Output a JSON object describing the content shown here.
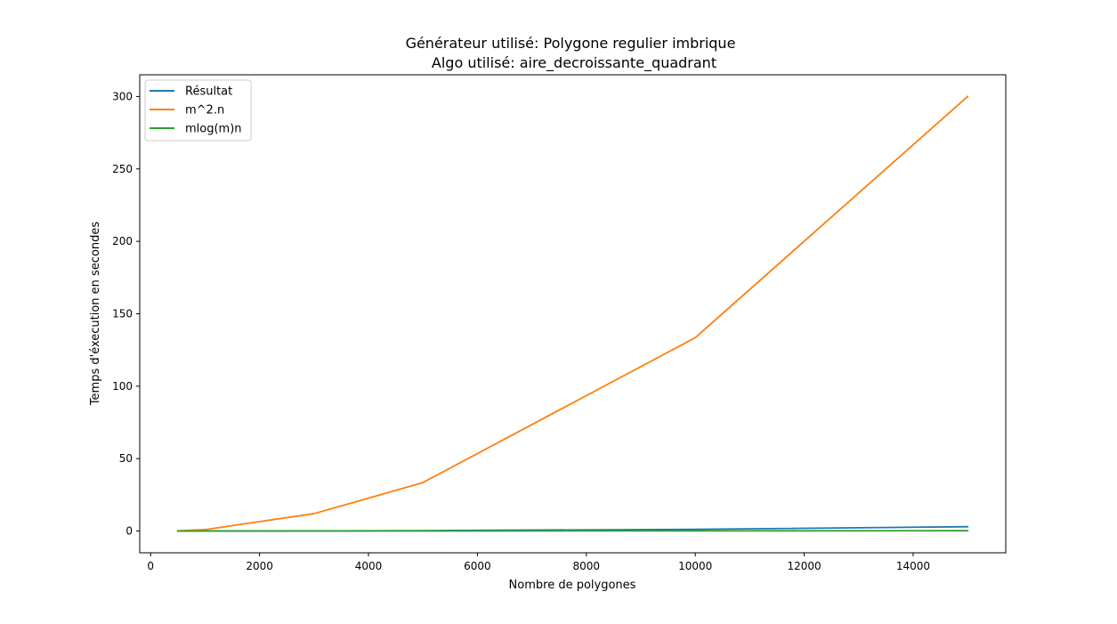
{
  "chart_data": {
    "type": "line",
    "title": "Générateur utilisé: Polygone regulier imbrique",
    "subtitle": "Algo utilisé: aire_decroissante_quadrant",
    "xlabel": "Nombre de polygones",
    "ylabel": "Temps d'éxecution en secondes",
    "xlim": [
      -200,
      15700
    ],
    "ylim": [
      -15,
      315
    ],
    "xticks": [
      0,
      2000,
      4000,
      6000,
      8000,
      10000,
      12000,
      14000
    ],
    "yticks": [
      0,
      50,
      100,
      150,
      200,
      250,
      300
    ],
    "grid": false,
    "legend_position": "top-left",
    "series": [
      {
        "name": "Résultat",
        "color": "#1f77b4",
        "x": [
          500,
          1000,
          3000,
          5000,
          10000,
          15000
        ],
        "y": [
          0.0,
          0.02,
          0.1,
          0.3,
          1.2,
          3.0
        ]
      },
      {
        "name": "m^2.n",
        "color": "#ff7f0e",
        "x": [
          500,
          1000,
          3000,
          5000,
          10000,
          15000
        ],
        "y": [
          0.2,
          1.0,
          12.0,
          33.5,
          133.5,
          300.0
        ]
      },
      {
        "name": "mlog(m)n",
        "color": "#2ca02c",
        "x": [
          500,
          1000,
          3000,
          5000,
          10000,
          15000
        ],
        "y": [
          0.0,
          0.01,
          0.05,
          0.08,
          0.15,
          0.25
        ]
      }
    ]
  }
}
